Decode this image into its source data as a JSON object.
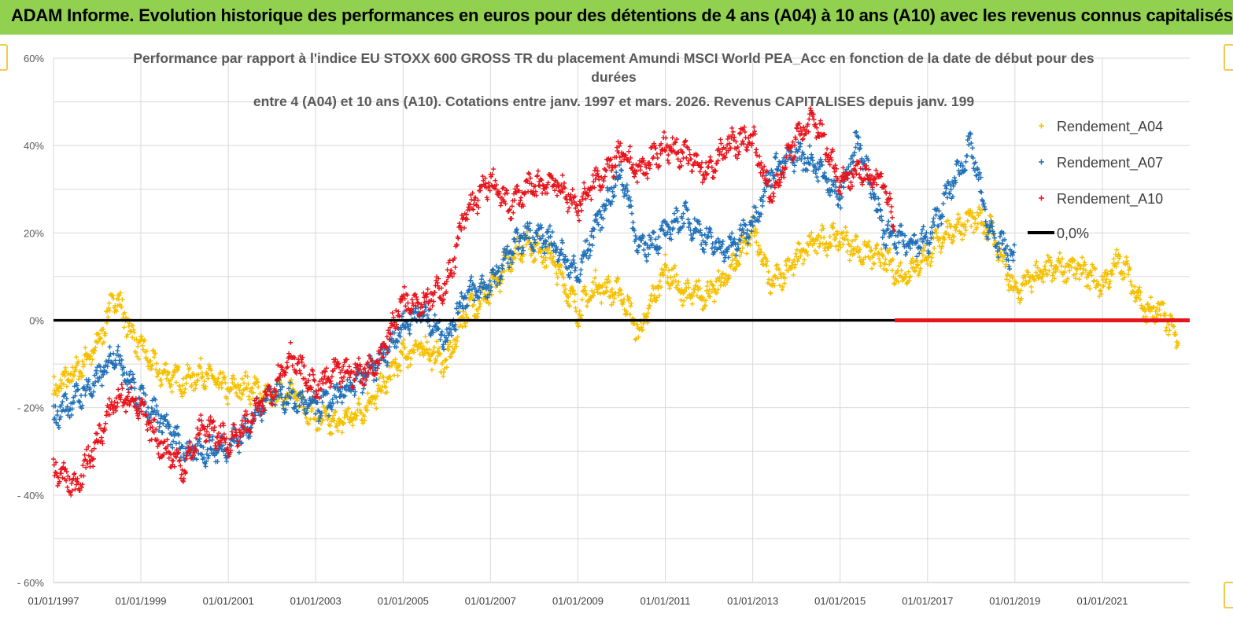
{
  "header": {
    "title": "ADAM Informe. Evolution historique des performances en euros pour des détentions de 4 ans (A04) à 10 ans (A10) avec les revenus connus capitalisés"
  },
  "colors": {
    "banner": "#92d050",
    "A04": "#f5c000",
    "A07": "#2070b8",
    "A10": "#e8141c",
    "zero": "#000000"
  },
  "chart_data": {
    "type": "scatter",
    "title_lines": [
      "Performance par rapport à l'indice EU STOXX 600 GROSS TR  du placement Amundi MSCI World PEA_Acc en fonction de la date de début pour des",
      "durées",
      "entre 4 (A04) et 10 ans (A10). Cotations entre janv. 1997 et mars. 2026. Revenus CAPITALISES depuis janv. 199"
    ],
    "x_range": [
      "1997-01-01",
      "2023-01-01"
    ],
    "x_tick_labels": [
      "01/01/1997",
      "01/01/1999",
      "01/01/2001",
      "01/01/2003",
      "01/01/2005",
      "01/01/2007",
      "01/01/2009",
      "01/01/2011",
      "01/01/2013",
      "01/01/2015",
      "01/01/2017",
      "01/01/2019",
      "01/01/2021"
    ],
    "x_tick_years": [
      1997,
      1999,
      2001,
      2003,
      2005,
      2007,
      2009,
      2011,
      2013,
      2015,
      2017,
      2019,
      2021
    ],
    "ylim": [
      -60,
      60
    ],
    "y_ticks": [
      60,
      40,
      20,
      0,
      -20,
      -40,
      -60
    ],
    "y_tick_labels": [
      "60%",
      "40%",
      "20%",
      "0%",
      "- 20%",
      "- 40%",
      "- 60%"
    ],
    "grid": true,
    "legend_position": "right",
    "zero_line": {
      "name": "0,0%",
      "value": 0,
      "x_end": "2016-04-01"
    },
    "series": [
      {
        "name": "Rendement_A04",
        "marker": "+",
        "x": [
          "1997-01-01",
          "1997-07-01",
          "1998-01-01",
          "1998-06-01",
          "1998-11-01",
          "1999-06-01",
          "2000-01-01",
          "2000-06-01",
          "2001-01-01",
          "2001-06-01",
          "2002-01-01",
          "2002-06-01",
          "2003-01-01",
          "2003-06-01",
          "2004-01-01",
          "2004-06-01",
          "2005-01-01",
          "2005-06-01",
          "2006-01-01",
          "2006-06-01",
          "2007-01-01",
          "2007-06-01",
          "2007-11-01",
          "2008-06-01",
          "2009-01-01",
          "2009-06-01",
          "2010-01-01",
          "2010-06-01",
          "2011-01-01",
          "2011-06-01",
          "2012-01-01",
          "2012-06-01",
          "2013-01-01",
          "2013-06-01",
          "2014-01-01",
          "2014-06-01",
          "2015-01-01",
          "2015-06-01",
          "2016-01-01",
          "2016-06-01",
          "2017-01-01",
          "2017-06-01",
          "2018-01-01",
          "2018-06-01",
          "2019-01-01",
          "2019-06-01",
          "2020-01-01",
          "2020-06-01",
          "2021-01-01",
          "2021-06-01",
          "2022-01-01",
          "2022-06-01",
          "2022-10-01"
        ],
        "values": [
          -16,
          -12,
          -6,
          6,
          -4,
          -12,
          -14,
          -12,
          -16,
          -15,
          -18,
          -16,
          -22,
          -24,
          -21,
          -17,
          -8,
          -6,
          -10,
          2,
          6,
          14,
          18,
          14,
          2,
          8,
          6,
          -3,
          12,
          6,
          6,
          10,
          21,
          8,
          14,
          18,
          19,
          16,
          14,
          10,
          15,
          20,
          23,
          22,
          6,
          10,
          12,
          12,
          8,
          14,
          2,
          2,
          -6
        ]
      },
      {
        "name": "Rendement_A07",
        "marker": "+",
        "x": [
          "1997-01-01",
          "1997-07-01",
          "1998-01-01",
          "1998-06-01",
          "1998-11-01",
          "1999-06-01",
          "2000-01-01",
          "2000-06-01",
          "2001-01-01",
          "2001-06-01",
          "2002-01-01",
          "2002-06-01",
          "2003-01-01",
          "2003-06-01",
          "2004-01-01",
          "2004-06-01",
          "2005-01-01",
          "2005-06-01",
          "2006-01-01",
          "2006-06-01",
          "2007-01-01",
          "2007-06-01",
          "2007-11-01",
          "2008-06-01",
          "2009-01-01",
          "2009-06-01",
          "2010-01-01",
          "2010-06-01",
          "2011-01-01",
          "2011-06-01",
          "2012-01-01",
          "2012-06-01",
          "2013-01-01",
          "2013-06-01",
          "2014-01-01",
          "2014-06-01",
          "2015-01-01",
          "2015-06-01",
          "2016-01-01",
          "2016-06-01",
          "2017-01-01",
          "2017-06-01",
          "2018-01-01",
          "2018-06-01",
          "2019-01-01"
        ],
        "values": [
          -22,
          -18,
          -14,
          -7,
          -16,
          -22,
          -30,
          -30,
          -29,
          -25,
          -16,
          -18,
          -20,
          -18,
          -14,
          -10,
          -1,
          2,
          -4,
          6,
          8,
          15,
          20,
          18,
          10,
          22,
          34,
          16,
          20,
          24,
          18,
          16,
          22,
          34,
          38,
          36,
          28,
          42,
          20,
          18,
          18,
          28,
          40,
          20,
          14
        ]
      },
      {
        "name": "Rendement_A10",
        "marker": "+",
        "x": [
          "1997-01-01",
          "1997-07-01",
          "1998-01-01",
          "1998-06-01",
          "1998-11-01",
          "1999-06-01",
          "2000-01-01",
          "2000-06-01",
          "2001-01-01",
          "2001-06-01",
          "2002-01-01",
          "2002-06-01",
          "2003-01-01",
          "2003-06-01",
          "2004-01-01",
          "2004-06-01",
          "2005-01-01",
          "2005-06-01",
          "2006-01-01",
          "2006-06-01",
          "2007-01-01",
          "2007-06-01",
          "2007-11-01",
          "2008-06-01",
          "2009-01-01",
          "2009-06-01",
          "2010-01-01",
          "2010-06-01",
          "2011-01-01",
          "2011-06-01",
          "2012-01-01",
          "2012-06-01",
          "2013-01-01",
          "2013-06-01",
          "2014-01-01",
          "2014-06-01",
          "2015-01-01",
          "2015-06-01",
          "2016-01-01",
          "2016-04-01"
        ],
        "values": [
          -34,
          -38,
          -28,
          -18,
          -18,
          -28,
          -34,
          -24,
          -28,
          -24,
          -16,
          -8,
          -16,
          -12,
          -12,
          -10,
          5,
          4,
          8,
          24,
          32,
          26,
          30,
          32,
          26,
          32,
          38,
          34,
          40,
          38,
          34,
          40,
          42,
          28,
          42,
          46,
          32,
          34,
          32,
          20
        ]
      }
    ]
  }
}
